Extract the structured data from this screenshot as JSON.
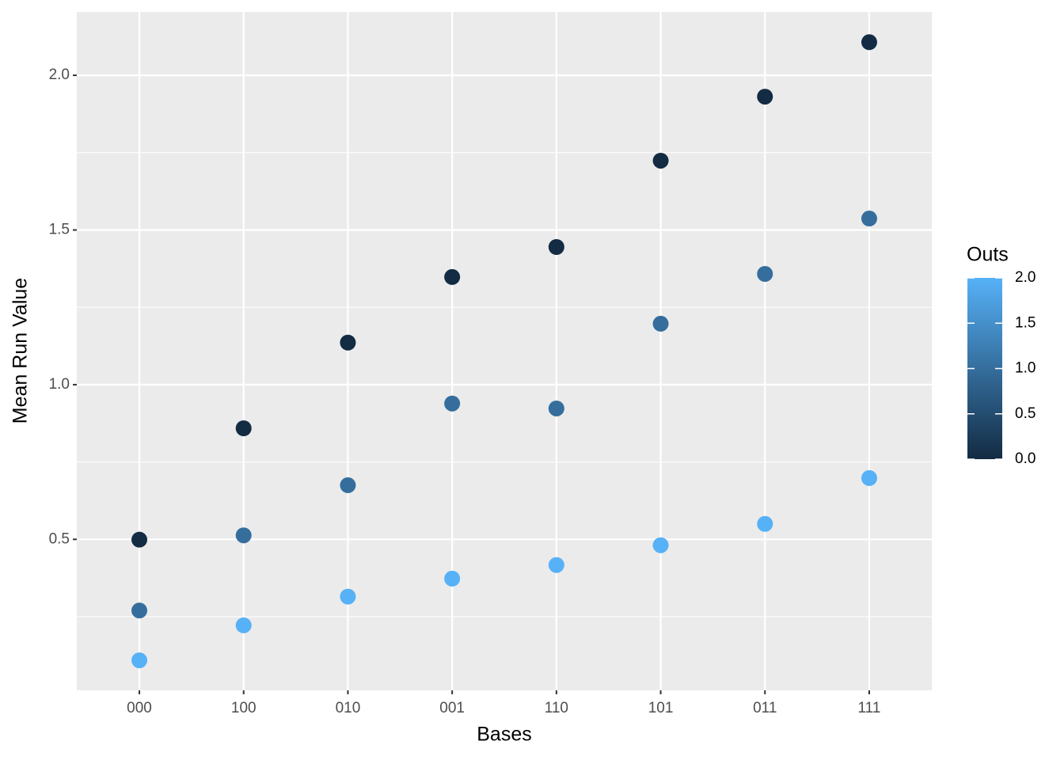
{
  "chart_data": {
    "type": "scatter",
    "x_label": "Bases",
    "y_label": "Mean Run Value",
    "categories": [
      "000",
      "100",
      "010",
      "001",
      "110",
      "101",
      "011",
      "111"
    ],
    "series": [
      {
        "z": 0,
        "values": [
          0.499,
          0.859,
          1.136,
          1.348,
          1.445,
          1.724,
          1.931,
          2.107
        ]
      },
      {
        "z": 1,
        "values": [
          0.27,
          0.513,
          0.675,
          0.939,
          0.923,
          1.197,
          1.358,
          1.537
        ]
      },
      {
        "z": 2,
        "values": [
          0.109,
          0.222,
          0.315,
          0.373,
          0.417,
          0.481,
          0.55,
          0.698
        ]
      }
    ],
    "ylim": [
      0.012,
      2.205
    ],
    "yticks": [
      0.5,
      {
        "value": 1.0,
        "label": "1.0"
      },
      1.5,
      {
        "value": 2.0,
        "label": "2.0"
      }
    ],
    "grid": true,
    "color_scale": {
      "title": "Outs",
      "low": "#132b43",
      "high": "#56b1f7",
      "lim": [
        0,
        2
      ],
      "ticks": [
        {
          "value": 0,
          "label": "0.0"
        },
        0.5,
        {
          "value": 1,
          "label": "1.0"
        },
        1.5,
        {
          "value": 2,
          "label": "2.0"
        }
      ]
    },
    "legend": "right"
  }
}
